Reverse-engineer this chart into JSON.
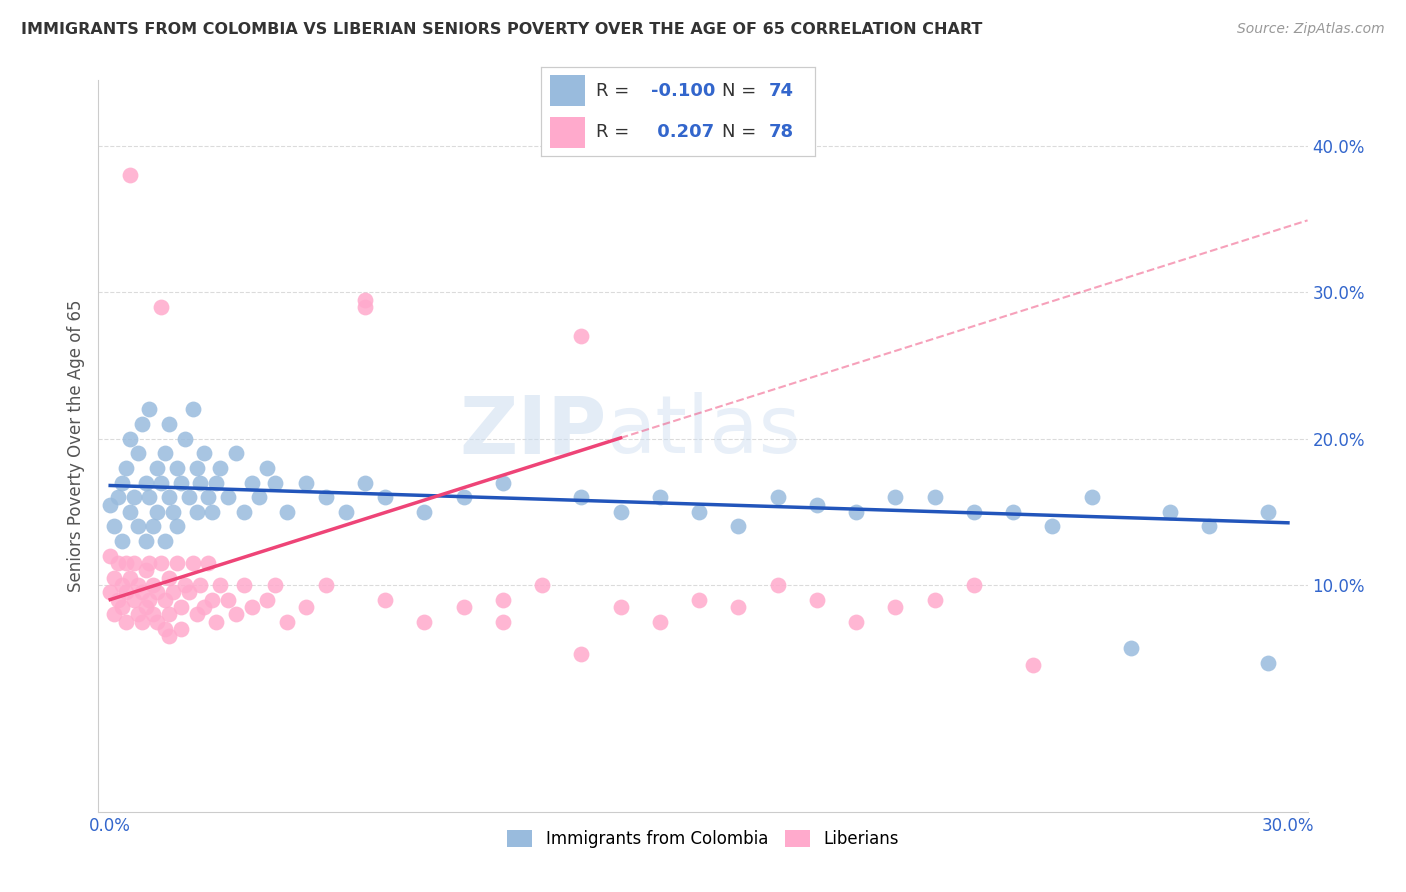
{
  "title": "IMMIGRANTS FROM COLOMBIA VS LIBERIAN SENIORS POVERTY OVER THE AGE OF 65 CORRELATION CHART",
  "source": "Source: ZipAtlas.com",
  "ylabel": "Seniors Poverty Over the Age of 65",
  "color_blue": "#99BBDD",
  "color_pink": "#FFAACC",
  "color_blue_line": "#2255BB",
  "color_pink_line": "#EE4477",
  "watermark": "ZIPatlas",
  "legend_r1": "-0.100",
  "legend_n1": "74",
  "legend_r2": "0.207",
  "legend_n2": "78",
  "xlim": [
    -0.003,
    0.305
  ],
  "ylim": [
    -0.055,
    0.445
  ],
  "yticks": [
    0.1,
    0.2,
    0.3,
    0.4
  ],
  "ytick_labels": [
    "10.0%",
    "20.0%",
    "30.0%",
    "40.0%"
  ],
  "xtick_labels": [
    "0.0%",
    "",
    "",
    "",
    "",
    "",
    "30.0%"
  ],
  "blue_x": [
    0.0,
    0.001,
    0.002,
    0.003,
    0.003,
    0.004,
    0.005,
    0.005,
    0.006,
    0.007,
    0.007,
    0.008,
    0.009,
    0.009,
    0.01,
    0.01,
    0.011,
    0.012,
    0.012,
    0.013,
    0.014,
    0.014,
    0.015,
    0.015,
    0.016,
    0.017,
    0.017,
    0.018,
    0.019,
    0.02,
    0.021,
    0.022,
    0.022,
    0.023,
    0.024,
    0.025,
    0.026,
    0.027,
    0.028,
    0.03,
    0.032,
    0.034,
    0.036,
    0.038,
    0.04,
    0.042,
    0.045,
    0.05,
    0.055,
    0.06,
    0.065,
    0.07,
    0.08,
    0.09,
    0.1,
    0.12,
    0.13,
    0.14,
    0.15,
    0.16,
    0.17,
    0.19,
    0.2,
    0.22,
    0.24,
    0.25,
    0.27,
    0.28,
    0.295,
    0.295,
    0.18,
    0.21,
    0.23,
    0.26
  ],
  "blue_y": [
    0.155,
    0.14,
    0.16,
    0.17,
    0.13,
    0.18,
    0.15,
    0.2,
    0.16,
    0.14,
    0.19,
    0.21,
    0.17,
    0.13,
    0.16,
    0.22,
    0.14,
    0.18,
    0.15,
    0.17,
    0.19,
    0.13,
    0.16,
    0.21,
    0.15,
    0.18,
    0.14,
    0.17,
    0.2,
    0.16,
    0.22,
    0.15,
    0.18,
    0.17,
    0.19,
    0.16,
    0.15,
    0.17,
    0.18,
    0.16,
    0.19,
    0.15,
    0.17,
    0.16,
    0.18,
    0.17,
    0.15,
    0.17,
    0.16,
    0.15,
    0.17,
    0.16,
    0.15,
    0.16,
    0.17,
    0.16,
    0.15,
    0.16,
    0.15,
    0.14,
    0.16,
    0.15,
    0.16,
    0.15,
    0.14,
    0.16,
    0.15,
    0.14,
    0.15,
    0.047,
    0.155,
    0.16,
    0.15,
    0.057
  ],
  "pink_x": [
    0.0,
    0.0,
    0.001,
    0.001,
    0.002,
    0.002,
    0.003,
    0.003,
    0.004,
    0.004,
    0.005,
    0.005,
    0.006,
    0.006,
    0.007,
    0.007,
    0.008,
    0.008,
    0.009,
    0.009,
    0.01,
    0.01,
    0.011,
    0.011,
    0.012,
    0.012,
    0.013,
    0.014,
    0.014,
    0.015,
    0.015,
    0.016,
    0.017,
    0.018,
    0.018,
    0.019,
    0.02,
    0.021,
    0.022,
    0.023,
    0.024,
    0.025,
    0.026,
    0.027,
    0.028,
    0.03,
    0.032,
    0.034,
    0.036,
    0.04,
    0.042,
    0.045,
    0.05,
    0.055,
    0.065,
    0.07,
    0.08,
    0.09,
    0.1,
    0.11,
    0.12,
    0.13,
    0.14,
    0.15,
    0.16,
    0.17,
    0.18,
    0.19,
    0.2,
    0.21,
    0.22,
    0.004,
    0.013,
    0.065,
    0.015,
    0.1,
    0.12,
    0.235
  ],
  "pink_y": [
    0.12,
    0.095,
    0.105,
    0.08,
    0.115,
    0.09,
    0.1,
    0.085,
    0.095,
    0.075,
    0.38,
    0.105,
    0.09,
    0.115,
    0.08,
    0.1,
    0.095,
    0.075,
    0.11,
    0.085,
    0.09,
    0.115,
    0.08,
    0.1,
    0.095,
    0.075,
    0.115,
    0.09,
    0.07,
    0.105,
    0.08,
    0.095,
    0.115,
    0.085,
    0.07,
    0.1,
    0.095,
    0.115,
    0.08,
    0.1,
    0.085,
    0.115,
    0.09,
    0.075,
    0.1,
    0.09,
    0.08,
    0.1,
    0.085,
    0.09,
    0.1,
    0.075,
    0.085,
    0.1,
    0.29,
    0.09,
    0.075,
    0.085,
    0.09,
    0.1,
    0.27,
    0.085,
    0.075,
    0.09,
    0.085,
    0.1,
    0.09,
    0.075,
    0.085,
    0.09,
    0.1,
    0.115,
    0.29,
    0.295,
    0.065,
    0.075,
    0.053,
    0.045
  ]
}
